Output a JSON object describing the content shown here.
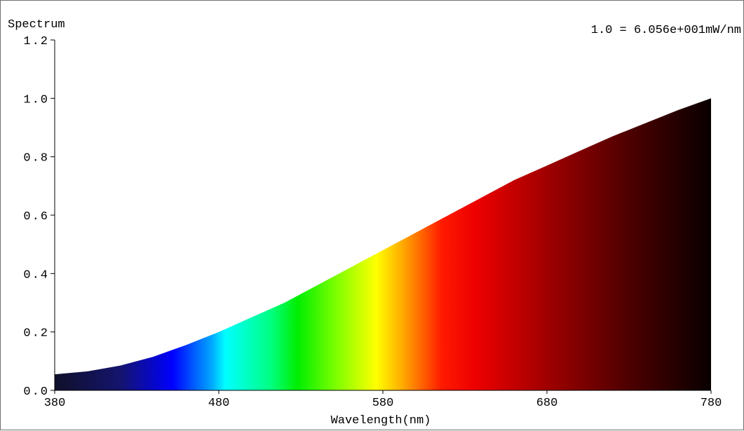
{
  "chart_data": {
    "type": "area",
    "title": "Spectrum",
    "annotation": "1.0 = 6.056e+001mW/nm",
    "xlabel": "Wavelength(nm)",
    "ylabel": "",
    "xlim": [
      380,
      780
    ],
    "ylim": [
      0.0,
      1.2
    ],
    "x_ticks": [
      "380",
      "480",
      "580",
      "680",
      "780"
    ],
    "y_ticks": [
      "0.0",
      "0.2",
      "0.4",
      "0.6",
      "0.8",
      "1.0",
      "1.2"
    ],
    "grid": false,
    "fill": "visible-spectrum-gradient",
    "x": [
      380,
      400,
      420,
      440,
      460,
      480,
      500,
      520,
      540,
      560,
      580,
      600,
      620,
      640,
      660,
      680,
      700,
      720,
      740,
      760,
      780
    ],
    "values": [
      0.055,
      0.065,
      0.085,
      0.115,
      0.155,
      0.2,
      0.25,
      0.3,
      0.36,
      0.42,
      0.48,
      0.54,
      0.6,
      0.66,
      0.72,
      0.77,
      0.82,
      0.87,
      0.915,
      0.96,
      1.0
    ]
  }
}
